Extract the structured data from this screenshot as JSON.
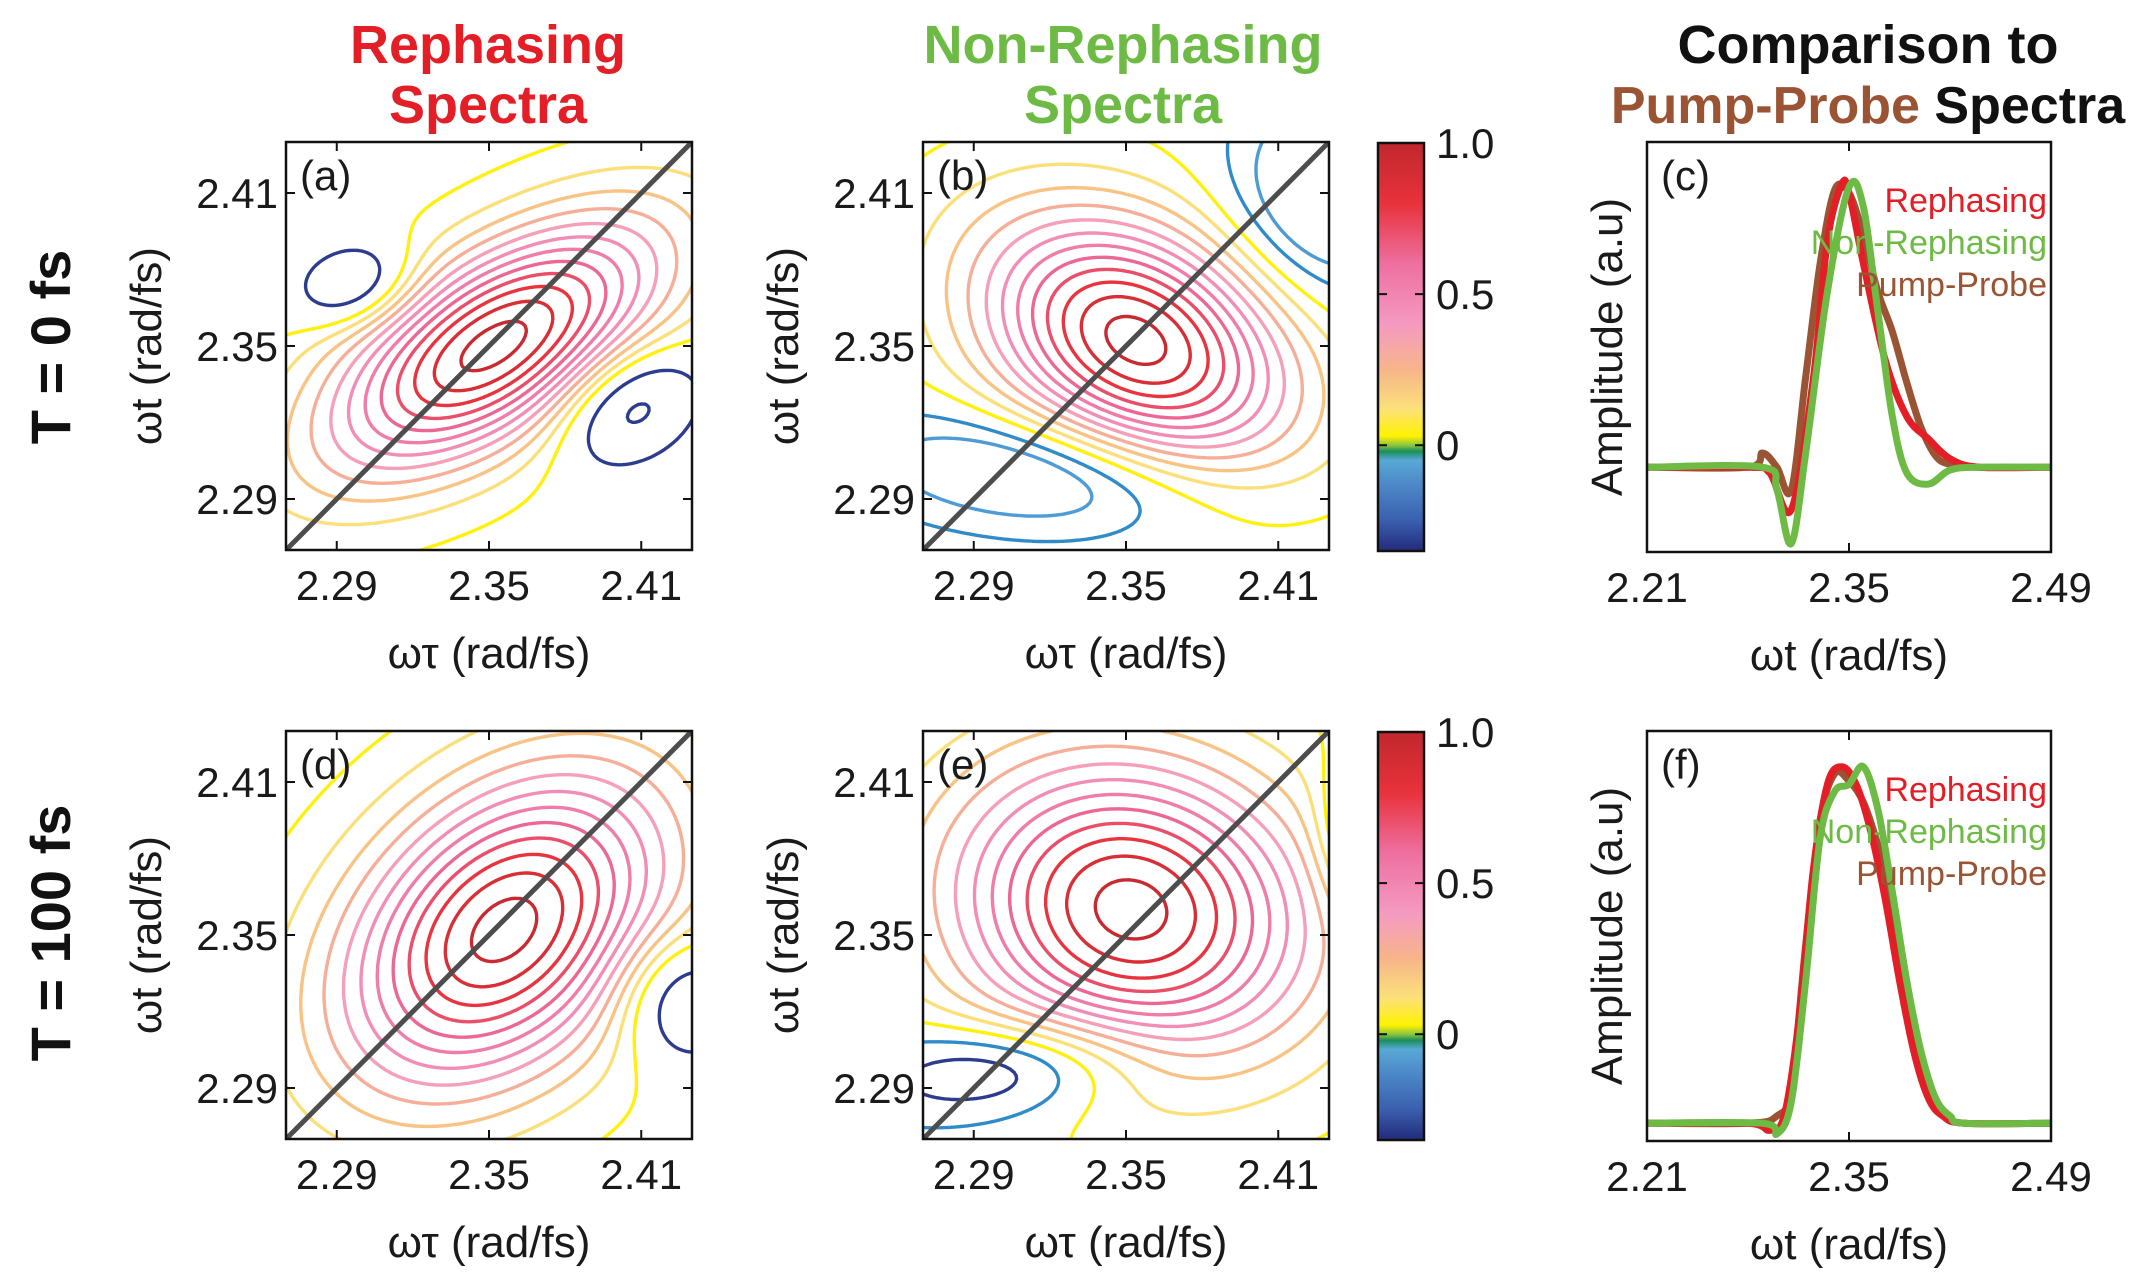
{
  "colors": {
    "rephasing": "#e41e26",
    "non_rephasing": "#6dbb45",
    "pump_probe": "#9a5434",
    "diagonal": "#4d4d4d",
    "text": "#1a1a1a"
  },
  "headers": {
    "rephasing": [
      "Rephasing",
      "Spectra"
    ],
    "non_rephasing": [
      "Non-Rephasing",
      "Spectra"
    ],
    "comparison_top": "Comparison to",
    "comparison_pp": "Pump-Probe",
    "comparison_rest": "Spectra"
  },
  "rows": {
    "top": "T = 0 fs",
    "bottom": "T = 100 fs"
  },
  "axis_text": {
    "x_tau": "ωτ (rad/fs)",
    "y_t": "ωt (rad/fs)",
    "x_t": "ωt (rad/fs)",
    "y_amp": "Amplitude (a.u)"
  },
  "colorbar": {
    "ticks": [
      "1.0",
      "0.5",
      "0"
    ],
    "tick_values": [
      1.0,
      0.5,
      0
    ],
    "range": [
      -0.35,
      1.0
    ],
    "stops": [
      {
        "v": -0.35,
        "c": "#232b7a"
      },
      {
        "v": -0.25,
        "c": "#3a5fae"
      },
      {
        "v": -0.12,
        "c": "#4e8cc9"
      },
      {
        "v": -0.05,
        "c": "#58a8d6"
      },
      {
        "v": -0.02,
        "c": "#1a8f5a"
      },
      {
        "v": 0.0,
        "c": "#8dc63f"
      },
      {
        "v": 0.03,
        "c": "#fff200"
      },
      {
        "v": 0.12,
        "c": "#fbe17a"
      },
      {
        "v": 0.25,
        "c": "#f7b58a"
      },
      {
        "v": 0.4,
        "c": "#f49ac1"
      },
      {
        "v": 0.6,
        "c": "#ee6fa0"
      },
      {
        "v": 0.8,
        "c": "#e8323b"
      },
      {
        "v": 1.0,
        "c": "#c1272d"
      }
    ]
  },
  "chart_data": [
    {
      "id": "a",
      "panel_label": "(a)",
      "type": "contour",
      "xlim": [
        2.27,
        2.43
      ],
      "ylim": [
        2.27,
        2.43
      ],
      "xticks": [
        2.29,
        2.35,
        2.41
      ],
      "yticks": [
        2.29,
        2.35,
        2.41
      ],
      "xtick_labels": [
        "2.29",
        "2.35",
        "2.41"
      ],
      "ytick_labels": [
        "2.29",
        "2.35",
        "2.41"
      ],
      "diagonal": true,
      "positive_levels": 12,
      "peaks": [
        {
          "x": 2.352,
          "y": 2.35,
          "amp": 1.0,
          "sx": 0.052,
          "sy": 0.024,
          "angle_deg": 32
        },
        {
          "x": 2.297,
          "y": 2.374,
          "amp": -0.28,
          "sx": 0.016,
          "sy": 0.011,
          "angle_deg": 15
        },
        {
          "x": 2.405,
          "y": 2.327,
          "amp": -0.34,
          "sx": 0.021,
          "sy": 0.015,
          "angle_deg": 30
        }
      ],
      "negative_contour_levels": [
        -0.1,
        -0.24
      ],
      "negative_contour_colors": [
        "#2c3d8f",
        "#2c3d8f"
      ]
    },
    {
      "id": "b",
      "panel_label": "(b)",
      "type": "contour",
      "xlim": [
        2.27,
        2.43
      ],
      "ylim": [
        2.27,
        2.43
      ],
      "xticks": [
        2.29,
        2.35,
        2.41
      ],
      "yticks": [
        2.29,
        2.35,
        2.41
      ],
      "xtick_labels": [
        "2.29",
        "2.35",
        "2.41"
      ],
      "ytick_labels": [
        "2.29",
        "2.35",
        "2.41"
      ],
      "diagonal": true,
      "positive_levels": 12,
      "peaks": [
        {
          "x": 2.354,
          "y": 2.352,
          "amp": 1.0,
          "sx": 0.045,
          "sy": 0.03,
          "angle_deg": -28
        },
        {
          "x": 2.318,
          "y": 2.3,
          "amp": -0.3,
          "sx": 0.05,
          "sy": 0.016,
          "angle_deg": -6
        },
        {
          "x": 2.43,
          "y": 2.41,
          "amp": -0.32,
          "sx": 0.026,
          "sy": 0.028,
          "angle_deg": 0
        }
      ],
      "negative_contour_levels": [
        -0.06,
        -0.14
      ],
      "negative_contour_colors": [
        "#2f8cc8",
        "#4e9bd6"
      ]
    },
    {
      "id": "d",
      "panel_label": "(d)",
      "type": "contour",
      "xlim": [
        2.27,
        2.43
      ],
      "ylim": [
        2.27,
        2.43
      ],
      "xticks": [
        2.29,
        2.35,
        2.41
      ],
      "yticks": [
        2.29,
        2.35,
        2.41
      ],
      "xtick_labels": [
        "2.29",
        "2.35",
        "2.41"
      ],
      "ytick_labels": [
        "2.29",
        "2.35",
        "2.41"
      ],
      "diagonal": true,
      "positive_levels": 12,
      "peaks": [
        {
          "x": 2.356,
          "y": 2.352,
          "amp": 1.0,
          "sx": 0.052,
          "sy": 0.035,
          "angle_deg": 42
        },
        {
          "x": 2.425,
          "y": 2.325,
          "amp": -0.3,
          "sx": 0.018,
          "sy": 0.018,
          "angle_deg": 20
        }
      ],
      "negative_contour_levels": [
        -0.1
      ],
      "negative_contour_colors": [
        "#2c3d8f"
      ]
    },
    {
      "id": "e",
      "panel_label": "(e)",
      "type": "contour",
      "xlim": [
        2.27,
        2.43
      ],
      "ylim": [
        2.27,
        2.43
      ],
      "xticks": [
        2.29,
        2.35,
        2.41
      ],
      "yticks": [
        2.29,
        2.35,
        2.41
      ],
      "xtick_labels": [
        "2.29",
        "2.35",
        "2.41"
      ],
      "ytick_labels": [
        "2.29",
        "2.35",
        "2.41"
      ],
      "diagonal": true,
      "positive_levels": 12,
      "peaks": [
        {
          "x": 2.352,
          "y": 2.36,
          "amp": 1.0,
          "sx": 0.05,
          "sy": 0.04,
          "angle_deg": -15
        },
        {
          "x": 2.305,
          "y": 2.298,
          "amp": -0.3,
          "sx": 0.04,
          "sy": 0.014,
          "angle_deg": 5
        },
        {
          "x": 2.44,
          "y": 2.39,
          "amp": -0.25,
          "sx": 0.01,
          "sy": 0.02,
          "angle_deg": 0
        }
      ],
      "negative_contour_levels": [
        -0.05,
        -0.14
      ],
      "negative_contour_colors": [
        "#2f8cc8",
        "#2c3d8f"
      ]
    },
    {
      "id": "c",
      "panel_label": "(c)",
      "type": "line",
      "xlim": [
        2.21,
        2.49
      ],
      "ylim": [
        -0.3,
        1.15
      ],
      "xticks": [
        2.21,
        2.35,
        2.49
      ],
      "xtick_labels": [
        "2.21",
        "2.35",
        "2.49"
      ],
      "legend": [
        "Rephasing",
        "Non-Rephasing",
        "Pump-Probe"
      ],
      "legend_placement": "top-right",
      "series": [
        {
          "name": "Rephasing",
          "color_key": "rephasing",
          "x": [
            2.21,
            2.28,
            2.295,
            2.31,
            2.325,
            2.335,
            2.345,
            2.35,
            2.36,
            2.375,
            2.39,
            2.405,
            2.42,
            2.44,
            2.49
          ],
          "y": [
            0,
            0,
            -0.02,
            -0.15,
            0.3,
            0.8,
            1.0,
            0.97,
            0.72,
            0.38,
            0.18,
            0.1,
            0.03,
            0,
            0
          ]
        },
        {
          "name": "Non-Rephasing",
          "color_key": "non_rephasing",
          "x": [
            2.21,
            2.29,
            2.3,
            2.31,
            2.32,
            2.335,
            2.35,
            2.36,
            2.37,
            2.38,
            2.39,
            2.405,
            2.42,
            2.44,
            2.49
          ],
          "y": [
            0,
            0,
            -0.08,
            -0.27,
            0.05,
            0.62,
            0.99,
            0.92,
            0.55,
            0.18,
            -0.02,
            -0.06,
            -0.01,
            0,
            0
          ]
        },
        {
          "name": "Pump-Probe",
          "color_key": "pump_probe",
          "x": [
            2.21,
            2.28,
            2.29,
            2.3,
            2.31,
            2.32,
            2.33,
            2.34,
            2.35,
            2.36,
            2.37,
            2.38,
            2.39,
            2.4,
            2.41,
            2.42,
            2.44,
            2.49
          ],
          "y": [
            0,
            0,
            0.05,
            0.0,
            -0.08,
            0.32,
            0.72,
            0.98,
            0.97,
            0.82,
            0.62,
            0.48,
            0.3,
            0.14,
            0.04,
            0.01,
            0,
            0
          ]
        }
      ]
    },
    {
      "id": "f",
      "panel_label": "(f)",
      "type": "line",
      "xlim": [
        2.21,
        2.49
      ],
      "ylim": [
        -0.05,
        1.1
      ],
      "xticks": [
        2.21,
        2.35,
        2.49
      ],
      "xtick_labels": [
        "2.21",
        "2.35",
        "2.49"
      ],
      "legend": [
        "Rephasing",
        "Non-Rephasing",
        "Pump-Probe"
      ],
      "legend_placement": "top-right",
      "series": [
        {
          "name": "Rephasing",
          "color_key": "rephasing",
          "x": [
            2.21,
            2.28,
            2.295,
            2.305,
            2.315,
            2.325,
            2.335,
            2.345,
            2.355,
            2.365,
            2.375,
            2.385,
            2.395,
            2.405,
            2.415,
            2.43,
            2.49
          ],
          "y": [
            0,
            0,
            -0.02,
            0.02,
            0.28,
            0.7,
            0.95,
            1.0,
            0.95,
            0.82,
            0.63,
            0.4,
            0.2,
            0.07,
            0.02,
            0,
            0
          ]
        },
        {
          "name": "Non-Rephasing",
          "color_key": "non_rephasing",
          "x": [
            2.21,
            2.29,
            2.3,
            2.31,
            2.32,
            2.33,
            2.34,
            2.35,
            2.36,
            2.37,
            2.38,
            2.39,
            2.4,
            2.41,
            2.42,
            2.43,
            2.49
          ],
          "y": [
            0,
            0,
            -0.03,
            0.06,
            0.4,
            0.8,
            0.93,
            0.95,
            1.0,
            0.88,
            0.65,
            0.4,
            0.2,
            0.07,
            0.02,
            0,
            0
          ]
        },
        {
          "name": "Pump-Probe",
          "color_key": "pump_probe",
          "x": [
            2.21,
            2.28,
            2.3,
            2.31,
            2.32,
            2.33,
            2.34,
            2.35,
            2.36,
            2.37,
            2.38,
            2.39,
            2.4,
            2.41,
            2.42,
            2.43,
            2.49
          ],
          "y": [
            0,
            0,
            0.02,
            0.1,
            0.5,
            0.85,
            0.98,
            0.96,
            0.9,
            0.78,
            0.62,
            0.38,
            0.18,
            0.06,
            0.02,
            0,
            0
          ]
        }
      ]
    }
  ]
}
